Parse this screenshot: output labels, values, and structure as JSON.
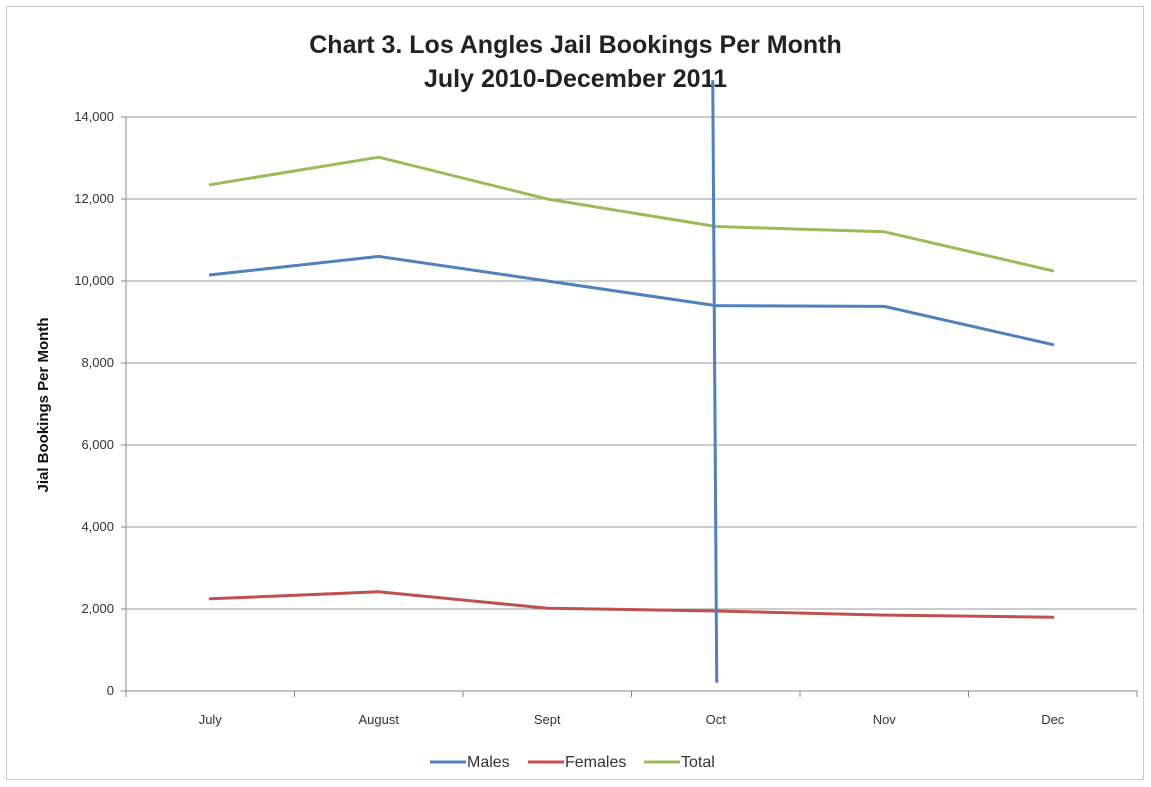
{
  "chart_data": {
    "type": "line",
    "title": "Chart 3.  Los Angles Jail Bookings Per Month",
    "subtitle": "July 2010-December 2011",
    "xlabel": "",
    "ylabel": "Jial Bookings Per Month",
    "categories": [
      "July",
      "August",
      "Sept",
      "Oct",
      "Nov",
      "Dec"
    ],
    "ylim": [
      0,
      14000
    ],
    "yticks": [
      0,
      2000,
      4000,
      6000,
      8000,
      10000,
      12000,
      14000
    ],
    "ytick_labels": [
      "0",
      "2,000",
      "4,000",
      "6,000",
      "8,000",
      "10,000",
      "12,000",
      "14,000"
    ],
    "grid": true,
    "legend_position": "bottom",
    "series": [
      {
        "name": "Males",
        "color": "#4f81bd",
        "values": [
          10150,
          10600,
          10000,
          9400,
          9380,
          8450
        ]
      },
      {
        "name": "Females",
        "color": "#c0504d",
        "values": [
          2250,
          2420,
          2020,
          1950,
          1850,
          1800
        ]
      },
      {
        "name": "Total",
        "color": "#9bbb59",
        "values": [
          12350,
          13020,
          12000,
          11330,
          11200,
          10250
        ]
      }
    ],
    "annotations": [
      {
        "type": "vertical-line",
        "x": "Oct",
        "y_from": 200,
        "y_to": 14900,
        "color": "#4f81bd"
      }
    ]
  }
}
